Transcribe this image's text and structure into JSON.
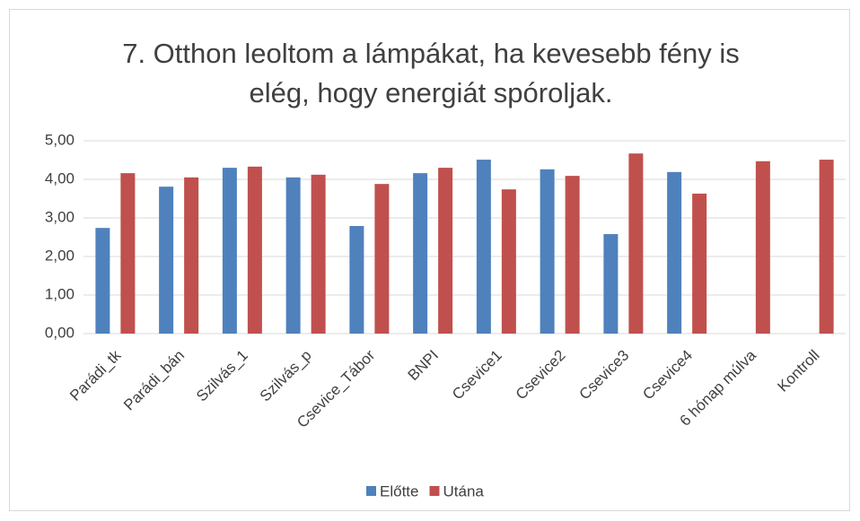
{
  "chart_data": {
    "type": "bar",
    "title": "7. Otthon leoltom a lámpákat, ha kevesebb fény is elég, hogy energiát spóroljak.",
    "categories": [
      "Parádi_tk",
      "Parádi_bán",
      "Szilvás_1",
      "Szilvás_p",
      "Csevice_Tábor",
      "BNPI",
      "Csevice1",
      "Csevice2",
      "Csevice3",
      "Csevice4",
      "6 hónap múlva",
      "Kontroll"
    ],
    "series": [
      {
        "name": "Előtte",
        "color": "#4f81bd",
        "values": [
          2.74,
          3.81,
          4.3,
          4.05,
          2.79,
          4.16,
          4.51,
          4.26,
          2.58,
          4.19,
          null,
          null
        ]
      },
      {
        "name": "Utána",
        "color": "#c0504d",
        "values": [
          4.16,
          4.05,
          4.33,
          4.12,
          3.88,
          4.3,
          3.74,
          4.09,
          4.67,
          3.63,
          4.47,
          4.51
        ]
      }
    ],
    "ylim": [
      0,
      5
    ],
    "yticks": [
      {
        "value": 0,
        "label": "0,00"
      },
      {
        "value": 1,
        "label": "1,00"
      },
      {
        "value": 2,
        "label": "2,00"
      },
      {
        "value": 3,
        "label": "3,00"
      },
      {
        "value": 4,
        "label": "4,00"
      },
      {
        "value": 5,
        "label": "5,00"
      }
    ],
    "grid": true,
    "legend": "bottom"
  }
}
